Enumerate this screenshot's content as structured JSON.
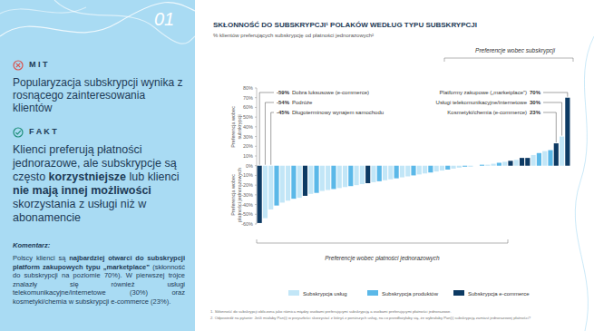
{
  "chart_data": {
    "type": "bar",
    "title": "SKŁONNOŚĆ DO SUBSKRYPCJI¹ POLAKÓW WEDŁUG TYPU SUBSKRYPCJI",
    "subtitle": "% klientów preferujących subskrypcję od płatności jednorazowych²",
    "ylabel": {
      "positive": "Preferencja wobec subskrypcji",
      "negative": "Preferencja wobec płatności jednorazowych"
    },
    "region_labels": {
      "positive": "Preferencje wobec subskrypcji",
      "negative": "Preferencje wobec płatności jednorazowych"
    },
    "categories": [
      null,
      null,
      null,
      null,
      null,
      null,
      null,
      null,
      null,
      null,
      null,
      null,
      null,
      null,
      null,
      null,
      null,
      null,
      null,
      null,
      null,
      null,
      null,
      null,
      null,
      null,
      null,
      null,
      null,
      null,
      null,
      null,
      null,
      null,
      null,
      null,
      null,
      null,
      null,
      null,
      null,
      null,
      null,
      null,
      null,
      null,
      null,
      null,
      null,
      null,
      null,
      null,
      null,
      null,
      null
    ],
    "series": [
      {
        "name": "Subskrypcja usług",
        "color": "#c2e6f7",
        "values": [
          null,
          -54,
          -45,
          null,
          -38,
          -36,
          null,
          -33,
          null,
          -29,
          null,
          -26,
          -25,
          null,
          -23,
          -22,
          null,
          -20,
          -19,
          null,
          -17,
          null,
          -15,
          -14,
          null,
          -12,
          -11,
          null,
          -9,
          -8,
          null,
          -6,
          -5,
          null,
          -3,
          -2,
          null,
          -1,
          0,
          null,
          1,
          2,
          null,
          4,
          null,
          6,
          null,
          null,
          11,
          null,
          15,
          null,
          null,
          30,
          null
        ]
      },
      {
        "name": "Subskrypcja produktów",
        "color": "#5bb8e8",
        "values": [
          null,
          null,
          null,
          -41,
          null,
          null,
          -34,
          null,
          null,
          null,
          -28,
          null,
          null,
          -24,
          null,
          null,
          -21,
          null,
          null,
          null,
          null,
          -16,
          null,
          null,
          -13,
          null,
          null,
          -10,
          null,
          null,
          -7,
          null,
          null,
          -4,
          null,
          null,
          -1,
          null,
          null,
          1,
          null,
          null,
          3,
          null,
          null,
          null,
          null,
          null,
          null,
          13,
          null,
          16,
          null,
          null,
          null
        ]
      },
      {
        "name": "Subskrypcja e-commerce",
        "color": "#0d3a63",
        "values": [
          -59,
          null,
          null,
          null,
          null,
          null,
          null,
          null,
          -31,
          null,
          null,
          null,
          null,
          null,
          null,
          null,
          null,
          null,
          null,
          -18,
          null,
          null,
          null,
          null,
          null,
          null,
          null,
          null,
          null,
          null,
          null,
          null,
          null,
          null,
          null,
          null,
          null,
          null,
          null,
          null,
          null,
          null,
          null,
          null,
          5,
          null,
          8,
          8,
          null,
          null,
          null,
          null,
          23,
          null,
          70
        ]
      }
    ],
    "ylim": [
      -60,
      80
    ],
    "yticks": [
      {
        "value": -60,
        "label": "-60%"
      },
      {
        "value": -50,
        "label": "-50%"
      },
      {
        "value": -40,
        "label": "-40%"
      },
      {
        "value": -30,
        "label": "-30%"
      },
      {
        "value": -20,
        "label": "-20%"
      },
      {
        "value": -10,
        "label": "-10%"
      },
      {
        "value": 0,
        "label": "0%"
      },
      {
        "value": 10,
        "label": "10%"
      },
      {
        "value": 20,
        "label": "20%"
      },
      {
        "value": 30,
        "label": "30%"
      },
      {
        "value": 40,
        "label": "40%"
      },
      {
        "value": 50,
        "label": "50%"
      },
      {
        "value": 60,
        "label": "60%"
      },
      {
        "value": 70,
        "label": "70%"
      },
      {
        "value": 80,
        "label": "80%"
      }
    ],
    "grid": false,
    "legend": "bottom",
    "annotations": [
      {
        "value": -59,
        "label": "-59%",
        "text": "Dobra luksusowe (e-commerce)"
      },
      {
        "value": -54,
        "label": "-54%",
        "text": "Podróże"
      },
      {
        "value": -45,
        "label": "-45%",
        "text": "Długoterminowy wynajem samochodu"
      },
      {
        "value": 70,
        "label": "70%",
        "text": "Platformy zakupowe („marketplace”)"
      },
      {
        "value": 30,
        "label": "30%",
        "text": "Usługi telekomunikacyjne/internetowe"
      },
      {
        "value": 23,
        "label": "23%",
        "text": "Kosmetyki/chemia (e-commerce)"
      }
    ],
    "footnotes": [
      "1.   Skłonność do subskrypcji obliczona jako różnica między osobami preferującymi subskrypcję a osobami preferującymi płatności jednorazowe.",
      "2.   Odpowiedź na pytanie: Jeśli miałaby Pan(i) w przyszłości skorzystać z któryś z poniższych usług, na co przedłożyłaby się, że wybrałaby Pan(i) subskrypcję zamiast jednorazowej płatności?"
    ]
  },
  "page": {
    "number": "01",
    "myth_label": "M I T",
    "myth": "Popularyzacja subskrypcji wynika z rosnącego zainteresowania klientów",
    "fact_label": "F A K T",
    "fact_parts": [
      "Klienci preferują płatności jednorazowe, ale subskrypcje są często ",
      "korzystniejsze",
      " lub klienci ",
      "nie mają innej możliwości",
      " skorzystania z usługi niż w abonamencie"
    ],
    "comment_label": "Komentarz:",
    "comment_parts": [
      "Polscy klienci są ",
      "najbardziej otwarci do subskrypcji platform zakupowych typu „marketplace”",
      " (skłonność do subskrypcji na poziomie 70%). W pierwszej trójce znalazły się również usługi telekomunikacyjne/internetowe (30%) oraz kosmetyki/chemia w subskrypcji e-commerce (23%)."
    ]
  }
}
